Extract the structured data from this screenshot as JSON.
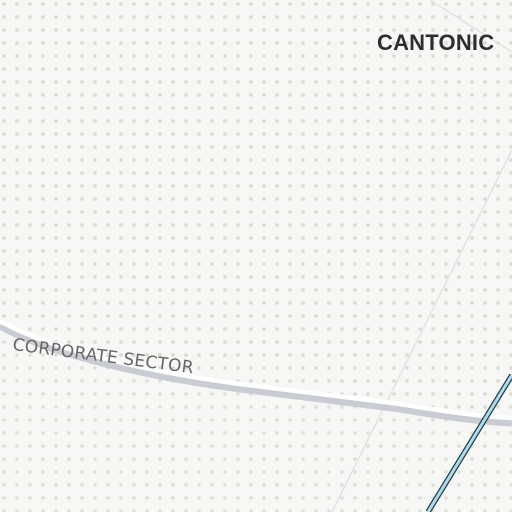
{
  "map": {
    "labels": {
      "district": "CANTONIC",
      "sector": "CORPORATE SECTOR"
    },
    "colors": {
      "background": "#f7f7f6",
      "dot_pattern": "#dcdcd6",
      "boundary_road": "#ffffff",
      "boundary_shadow": "#b9bec6",
      "transit_line": "#a8dcef",
      "transit_outline": "#2a3b45",
      "grid_line": "#e2e2e2"
    }
  }
}
